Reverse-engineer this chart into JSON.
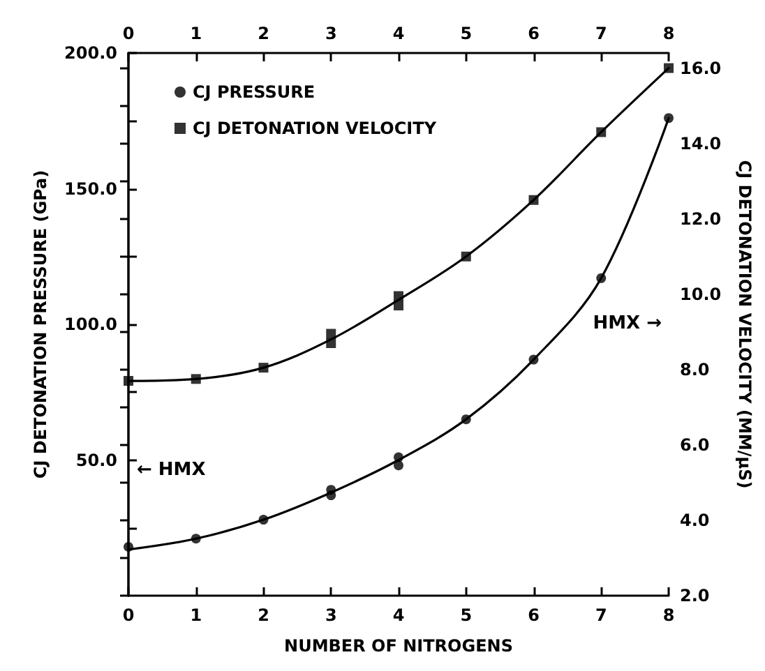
{
  "chart_data": {
    "type": "scatter",
    "xlabel": "NUMBER OF NITROGENS",
    "ylabel": "CJ DETONATION PRESSURE (GPa)",
    "y2label": "CJ DETONATION VELOCITY (MM/μS)",
    "xlim": [
      0,
      8
    ],
    "xticks": [
      0,
      1,
      2,
      3,
      4,
      5,
      6,
      7,
      8
    ],
    "x2lim": [
      0,
      8
    ],
    "x2ticks": [
      0,
      1,
      2,
      3,
      4,
      5,
      6,
      7,
      8
    ],
    "ylim": [
      0,
      200
    ],
    "yticks": [
      {
        "value": 25,
        "label": null
      },
      {
        "value": 50,
        "label": "50.0"
      },
      {
        "value": 75,
        "label": null
      },
      {
        "value": 100,
        "label": "100.0"
      },
      {
        "value": 125,
        "label": null
      },
      {
        "value": 150,
        "label": "150.0"
      },
      {
        "value": 175,
        "label": null
      },
      {
        "value": 200,
        "label": "200.0"
      }
    ],
    "y2lim": [
      2,
      16.4
    ],
    "y2ticks": [
      {
        "value": 2,
        "label": "2.0"
      },
      {
        "value": 3,
        "label": null
      },
      {
        "value": 4,
        "label": "4.0"
      },
      {
        "value": 5,
        "label": null
      },
      {
        "value": 6,
        "label": "6.0"
      },
      {
        "value": 7,
        "label": null
      },
      {
        "value": 8,
        "label": "8.0"
      },
      {
        "value": 9,
        "label": null
      },
      {
        "value": 10,
        "label": "10.0"
      },
      {
        "value": 11,
        "label": null
      },
      {
        "value": 12,
        "label": "12.0"
      },
      {
        "value": 13,
        "label": null
      },
      {
        "value": 14,
        "label": "14.0"
      },
      {
        "value": 15,
        "label": null
      },
      {
        "value": 16,
        "label": "16.0"
      }
    ],
    "grid": false,
    "legend": "top left",
    "annotations": [
      "← HMX",
      "HMX →"
    ],
    "series": [
      {
        "name": "CJ PRESSURE",
        "marker": "circle",
        "color": "#000000",
        "x": [
          0,
          1,
          2,
          3,
          3,
          4,
          4,
          5,
          6,
          7,
          8
        ],
        "values": [
          18,
          21,
          28,
          37,
          39,
          48,
          51,
          65,
          87,
          117,
          176
        ]
      },
      {
        "name": "CJ DETONATION VELOCITY",
        "marker": "square",
        "axis": "y2",
        "color": "#000000",
        "x": [
          0,
          1,
          2,
          3,
          3,
          4,
          4,
          5,
          6,
          7,
          8
        ],
        "values": [
          7.7,
          7.75,
          8.05,
          8.7,
          8.95,
          9.7,
          9.95,
          11.0,
          12.5,
          14.3,
          16.0
        ]
      },
      {
        "type": "line",
        "marker": "none",
        "color": "#000000",
        "x": [
          0,
          1,
          2,
          3,
          4,
          5,
          6,
          7,
          8
        ],
        "values": [
          17,
          21,
          28,
          38,
          50,
          65,
          87,
          117,
          176
        ]
      },
      {
        "type": "line",
        "marker": "none",
        "axis": "y2",
        "color": "#000000",
        "x": [
          0,
          1,
          2,
          3,
          4,
          5,
          6,
          7,
          8
        ],
        "values": [
          7.7,
          7.75,
          8.05,
          8.8,
          9.85,
          11.0,
          12.5,
          14.3,
          16.0
        ]
      }
    ]
  }
}
